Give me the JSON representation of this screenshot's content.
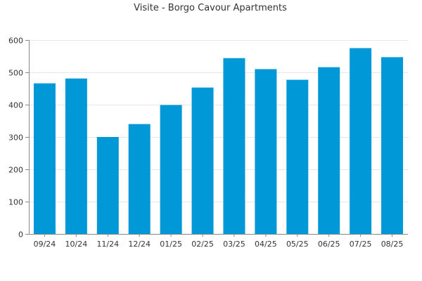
{
  "chart_data": {
    "type": "bar",
    "title": "Visite - Borgo Cavour Apartments",
    "categories": [
      "09/24",
      "10/24",
      "11/24",
      "12/24",
      "01/25",
      "02/25",
      "03/25",
      "04/25",
      "05/25",
      "06/25",
      "07/25",
      "08/25"
    ],
    "values": [
      466,
      481,
      300,
      340,
      399,
      453,
      544,
      510,
      477,
      516,
      575,
      547
    ],
    "ylim": [
      0,
      600
    ],
    "yticks": [
      0,
      100,
      200,
      300,
      400,
      500,
      600
    ],
    "grid": true,
    "xlabel": "",
    "ylabel": "",
    "colors": {
      "bar": "#0098d6"
    }
  }
}
